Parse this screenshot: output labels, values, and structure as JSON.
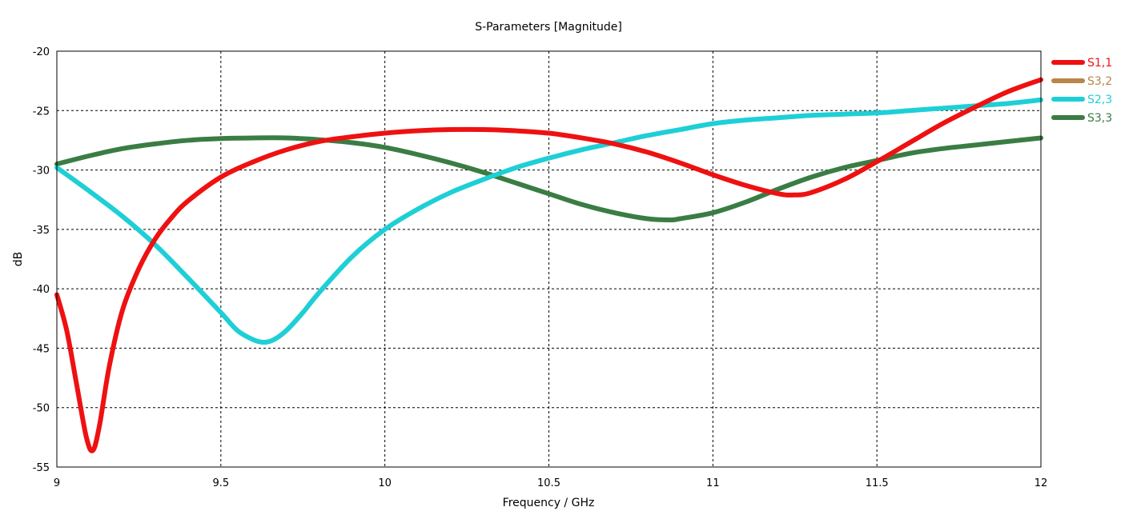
{
  "chart_data": {
    "type": "line",
    "title": "S-Parameters [Magnitude]",
    "xlabel": "Frequency / GHz",
    "ylabel": "dB",
    "xlim": [
      9,
      12
    ],
    "ylim": [
      -55,
      -20
    ],
    "xticks": [
      9,
      9.5,
      10,
      10.5,
      11,
      11.5,
      12
    ],
    "xtick_labels": [
      "9",
      "9.5",
      "10",
      "10.5",
      "11",
      "11.5",
      "12"
    ],
    "yticks": [
      -55,
      -50,
      -45,
      -40,
      -35,
      -30,
      -25,
      -20
    ],
    "ytick_labels": [
      "-55",
      "-50",
      "-45",
      "-40",
      "-35",
      "-30",
      "-25",
      "-20"
    ],
    "grid": true,
    "legend_position": "right",
    "series": [
      {
        "name": "S1,1",
        "color": "#ee1111",
        "x": [
          9.0,
          9.03,
          9.06,
          9.09,
          9.11,
          9.13,
          9.16,
          9.2,
          9.25,
          9.3,
          9.35,
          9.4,
          9.5,
          9.6,
          9.7,
          9.8,
          9.9,
          10.0,
          10.1,
          10.2,
          10.3,
          10.4,
          10.5,
          10.6,
          10.7,
          10.8,
          10.9,
          11.0,
          11.1,
          11.2,
          11.25,
          11.3,
          11.4,
          11.5,
          11.6,
          11.7,
          11.8,
          11.9,
          12.0
        ],
        "y": [
          -40.5,
          -43.5,
          -48.0,
          -52.5,
          -53.6,
          -51.5,
          -46.5,
          -41.8,
          -38.3,
          -35.8,
          -34.0,
          -32.6,
          -30.6,
          -29.3,
          -28.3,
          -27.6,
          -27.2,
          -26.9,
          -26.7,
          -26.6,
          -26.6,
          -26.7,
          -26.9,
          -27.3,
          -27.8,
          -28.5,
          -29.4,
          -30.4,
          -31.3,
          -32.0,
          -32.1,
          -31.9,
          -30.8,
          -29.3,
          -27.7,
          -26.1,
          -24.7,
          -23.4,
          -22.4
        ]
      },
      {
        "name": "S3,2",
        "color": "#b8864a",
        "x": [],
        "y": []
      },
      {
        "name": "S2,3",
        "color": "#1ecfd6",
        "x": [
          9.0,
          9.1,
          9.2,
          9.3,
          9.4,
          9.5,
          9.55,
          9.6,
          9.63,
          9.66,
          9.7,
          9.75,
          9.8,
          9.9,
          10.0,
          10.1,
          10.2,
          10.3,
          10.4,
          10.5,
          10.6,
          10.7,
          10.8,
          10.9,
          11.0,
          11.1,
          11.2,
          11.3,
          11.4,
          11.5,
          11.6,
          11.7,
          11.8,
          11.9,
          12.0
        ],
        "y": [
          -29.8,
          -31.8,
          -33.9,
          -36.3,
          -39.1,
          -42.0,
          -43.5,
          -44.3,
          -44.5,
          -44.3,
          -43.5,
          -42.0,
          -40.3,
          -37.3,
          -35.0,
          -33.3,
          -31.9,
          -30.8,
          -29.8,
          -29.0,
          -28.3,
          -27.7,
          -27.1,
          -26.6,
          -26.1,
          -25.8,
          -25.6,
          -25.4,
          -25.3,
          -25.2,
          -25.0,
          -24.8,
          -24.6,
          -24.4,
          -24.1
        ]
      },
      {
        "name": "S3,3",
        "color": "#3a7d44",
        "x": [
          9.0,
          9.1,
          9.2,
          9.3,
          9.4,
          9.5,
          9.6,
          9.7,
          9.8,
          9.9,
          10.0,
          10.1,
          10.2,
          10.3,
          10.4,
          10.5,
          10.6,
          10.7,
          10.8,
          10.87,
          10.9,
          11.0,
          11.1,
          11.2,
          11.3,
          11.4,
          11.5,
          11.6,
          11.7,
          11.8,
          11.9,
          12.0
        ],
        "y": [
          -29.5,
          -28.8,
          -28.2,
          -27.8,
          -27.5,
          -27.35,
          -27.3,
          -27.3,
          -27.45,
          -27.7,
          -28.1,
          -28.7,
          -29.4,
          -30.2,
          -31.1,
          -32.0,
          -32.9,
          -33.6,
          -34.1,
          -34.2,
          -34.1,
          -33.6,
          -32.7,
          -31.6,
          -30.6,
          -29.8,
          -29.2,
          -28.6,
          -28.2,
          -27.9,
          -27.6,
          -27.3
        ]
      }
    ]
  }
}
